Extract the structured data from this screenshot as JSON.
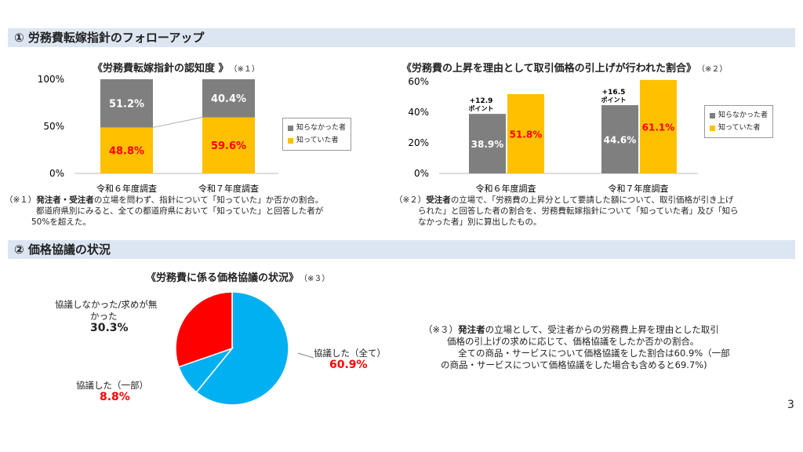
{
  "section1": {
    "title": "① 労務費転嫁指針のフォローアップ"
  },
  "section2": {
    "title": "② 価格協議の状況"
  },
  "colors": {
    "gray": "#7f7f7f",
    "yellow": "#ffc000",
    "red_text": "#ff0000",
    "blue": "#00b0f0",
    "red": "#ff0000",
    "header_bg": "#dce6f2"
  },
  "notes": {
    "n1": {
      "mark": "（※１）",
      "bold": "発注者・受注者",
      "text": "の立場を問わず、指針について「知っていた」か否かの割合。",
      "line2": "都道府県別にみると、全ての都道府県において「知っていた」と回答した者が",
      "line3": "50%を超えた。"
    },
    "n2": {
      "mark": "（※２）",
      "bold": "受注者",
      "text": "の立場で、「労務費の上昇分として要請した額について、取引価格が引き上げ",
      "line2": "られた」と回答した者の割合を、労務費転嫁指針について「知っていた者」及び「知ら",
      "line3": "なかった者」別に算出したもの。"
    },
    "n3": {
      "mark": "（※３）",
      "bold": "発注者",
      "text": "の立場として、受注者からの労務費上昇を理由とした取引",
      "line2": "価格の引上げの求めに応じて、価格協議をしたか否かの割合。",
      "line3": "全ての商品・サービスについて価格協議をした割合は60.9%（一部",
      "line4": "の商品・サービスについて価格協議をした場合も含めると69.7%)"
    }
  },
  "page_number": "3",
  "chart_data": [
    {
      "type": "bar",
      "stacked": true,
      "title": "《労務費転嫁指針の認知度 》",
      "note_ref": "（※１）",
      "categories": [
        "令和６年度調査",
        "令和７年度調査"
      ],
      "yticks": [
        "100%",
        "50%",
        "0%"
      ],
      "ylim": [
        0,
        100
      ],
      "series": [
        {
          "name": "知っていた者",
          "values": [
            48.8,
            59.6
          ],
          "labels": [
            "48.8%",
            "59.6%"
          ]
        },
        {
          "name": "知らなかった者",
          "values": [
            51.2,
            40.4
          ],
          "labels": [
            "51.2%",
            "40.4%"
          ]
        }
      ],
      "legend": [
        "知らなかった者",
        "知っていた者"
      ],
      "legend_position": "right"
    },
    {
      "type": "bar",
      "stacked": false,
      "title": "《労務費の上昇を理由として取引価格の引上げが行われた割合》",
      "note_ref": "（※２）",
      "categories": [
        "令和６年度調査",
        "令和７年度調査"
      ],
      "yticks": [
        "60%",
        "40%",
        "20%",
        "0%"
      ],
      "ylim": [
        0,
        60
      ],
      "series": [
        {
          "name": "知らなかった者",
          "values": [
            38.9,
            44.6
          ],
          "labels": [
            "38.9%",
            "44.6%"
          ]
        },
        {
          "name": "知っていた者",
          "values": [
            51.8,
            61.1
          ],
          "labels": [
            "51.8%",
            "61.1%"
          ]
        }
      ],
      "annotations": [
        {
          "value": "+12.9",
          "unit": "ポイント"
        },
        {
          "value": "+16.5",
          "unit": "ポイント"
        }
      ],
      "legend": [
        "知らなかった者",
        "知っていた者"
      ],
      "legend_position": "right"
    },
    {
      "type": "pie",
      "title": "《労務費に係る価格協議の状況》",
      "note_ref": "（※３）",
      "slices": [
        {
          "label": "協議した（全て）",
          "value": 60.9,
          "text": "60.9%"
        },
        {
          "label": "協議した（一部）",
          "value": 8.8,
          "text": "8.8%"
        },
        {
          "label_line1": "協議しなかった/求めが無",
          "label_line2": "かった",
          "value": 30.3,
          "text": "30.3%"
        }
      ]
    }
  ]
}
